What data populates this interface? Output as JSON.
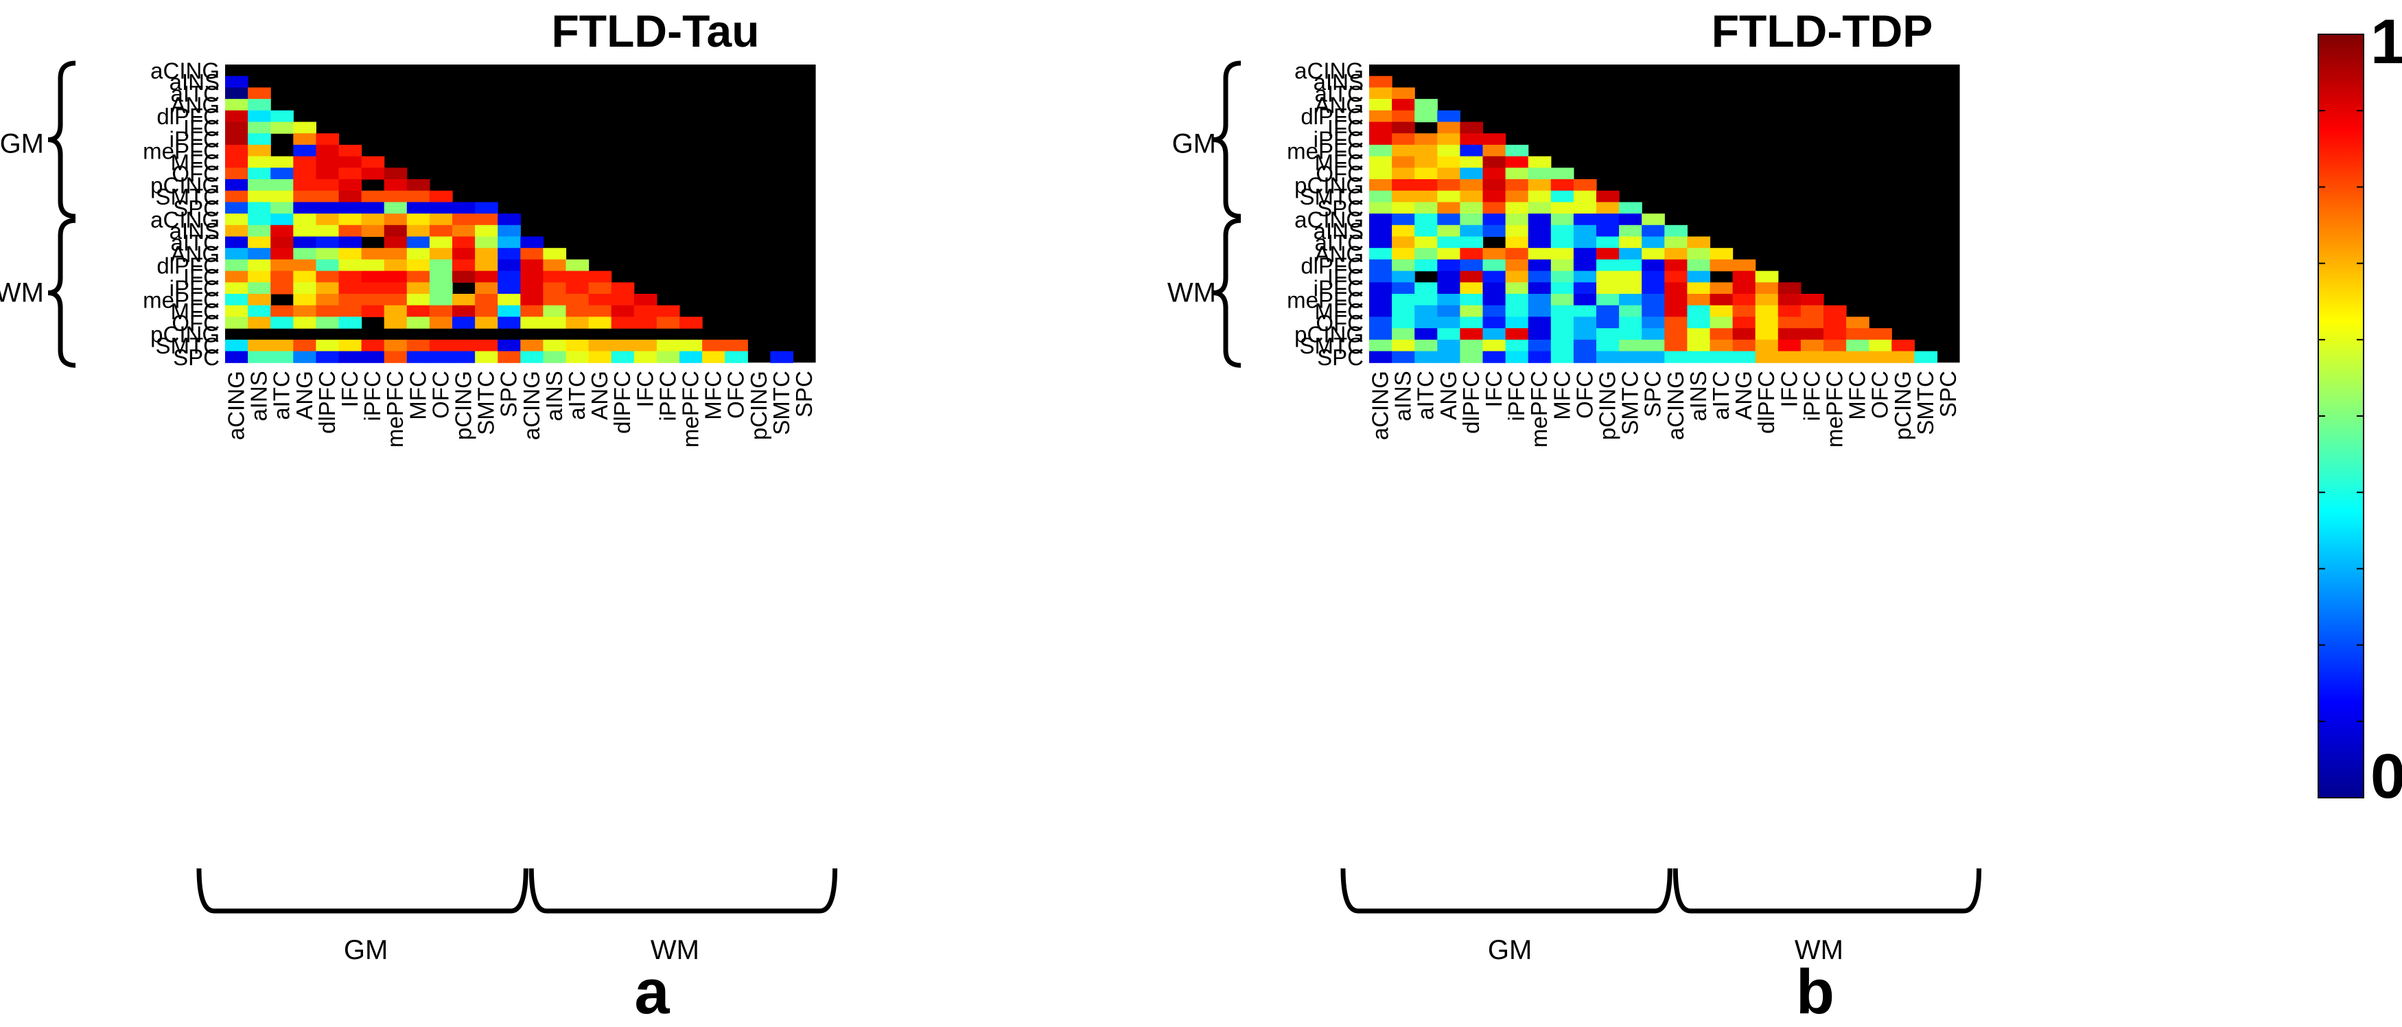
{
  "colorbar": {
    "max_label": "1",
    "min_label": "0",
    "min": 0,
    "max": 1,
    "colormap": "jet"
  },
  "chart_data": [
    {
      "type": "heatmap",
      "title": "FTLD-Tau",
      "panel_label": "a",
      "row_labels": [
        "aCING",
        "aINS",
        "aITC",
        "ANG",
        "dlPFC",
        "IFC",
        "iPFC",
        "mePFC",
        "MFC",
        "OFC",
        "pCING",
        "SMTC",
        "SPC",
        "aCING",
        "aINS",
        "aITC",
        "ANG",
        "dlPFC",
        "IFC",
        "iPFC",
        "mePFC",
        "MFC",
        "OFC",
        "pCING",
        "SMTC",
        "SPC"
      ],
      "col_labels": [
        "aCING",
        "aINS",
        "aITC",
        "ANG",
        "dlPFC",
        "IFC",
        "iPFC",
        "mePFC",
        "MFC",
        "OFC",
        "pCING",
        "SMTC",
        "SPC",
        "aCING",
        "aINS",
        "aITC",
        "ANG",
        "dlPFC",
        "IFC",
        "iPFC",
        "mePFC",
        "MFC",
        "OFC",
        "pCING",
        "SMTC",
        "SPC"
      ],
      "group_labels": [
        "GM",
        "WM"
      ],
      "matrix": [
        [],
        [
          0.1
        ],
        [
          0.0,
          0.8
        ],
        [
          0.55,
          0.45
        ],
        [
          0.92,
          0.35,
          0.4
        ],
        [
          0.95,
          0.5,
          0.55,
          0.6
        ],
        [
          0.95,
          0.4,
          null,
          0.75,
          0.85
        ],
        [
          0.85,
          0.7,
          null,
          0.15,
          0.9,
          0.85
        ],
        [
          0.85,
          0.6,
          0.6,
          0.85,
          0.9,
          0.9,
          0.85
        ],
        [
          0.8,
          0.4,
          0.2,
          0.85,
          0.9,
          0.85,
          0.9,
          0.95
        ],
        [
          0.1,
          0.5,
          0.5,
          0.85,
          0.85,
          0.9,
          null,
          0.9,
          0.95
        ],
        [
          0.8,
          0.6,
          0.6,
          0.8,
          0.8,
          0.92,
          0.8,
          0.8,
          0.8,
          0.85
        ],
        [
          0.2,
          0.4,
          0.5,
          0.1,
          0.1,
          0.1,
          0.1,
          0.5,
          0.1,
          0.1,
          0.1,
          0.15
        ],
        [
          0.6,
          0.4,
          0.35,
          0.6,
          0.7,
          0.65,
          0.7,
          0.75,
          0.65,
          0.7,
          0.8,
          0.8,
          0.1
        ],
        [
          0.7,
          0.5,
          0.9,
          0.6,
          0.6,
          0.8,
          0.75,
          0.95,
          0.7,
          0.8,
          0.75,
          0.6,
          0.25
        ],
        [
          0.1,
          0.65,
          0.92,
          0.1,
          0.15,
          0.1,
          null,
          0.92,
          0.2,
          0.6,
          0.85,
          0.55,
          0.3,
          0.1
        ],
        [
          0.3,
          0.25,
          0.9,
          0.5,
          0.55,
          0.65,
          0.75,
          0.75,
          0.6,
          0.7,
          0.9,
          0.7,
          0.15,
          0.8,
          0.6
        ],
        [
          0.5,
          0.6,
          0.75,
          0.75,
          0.45,
          0.6,
          0.6,
          0.7,
          0.65,
          0.5,
          0.85,
          0.7,
          0.1,
          0.9,
          0.75,
          0.55
        ],
        [
          0.75,
          0.65,
          0.8,
          0.65,
          0.8,
          0.85,
          0.88,
          0.88,
          0.8,
          0.5,
          0.95,
          0.9,
          0.15,
          0.9,
          0.85,
          0.85,
          0.85
        ],
        [
          0.6,
          0.5,
          0.8,
          0.6,
          0.7,
          0.85,
          0.85,
          0.85,
          0.7,
          0.5,
          null,
          0.75,
          0.15,
          0.9,
          0.8,
          0.85,
          0.8,
          0.85
        ],
        [
          0.4,
          0.7,
          null,
          0.65,
          0.75,
          0.8,
          0.8,
          0.8,
          0.6,
          0.5,
          0.7,
          0.8,
          0.6,
          0.9,
          0.8,
          0.8,
          0.85,
          0.85,
          0.9
        ],
        [
          0.6,
          0.4,
          0.8,
          0.75,
          0.8,
          0.8,
          0.85,
          0.7,
          0.85,
          0.8,
          0.92,
          0.8,
          0.35,
          0.8,
          0.55,
          0.8,
          0.8,
          0.9,
          0.85,
          0.85
        ],
        [
          0.55,
          0.7,
          0.4,
          0.6,
          0.5,
          0.4,
          null,
          0.7,
          0.55,
          0.75,
          0.15,
          0.7,
          0.15,
          0.6,
          0.6,
          0.7,
          0.65,
          0.85,
          0.85,
          0.8,
          0.85
        ],
        [],
        [
          0.35,
          0.7,
          0.7,
          0.8,
          0.6,
          0.65,
          0.85,
          0.75,
          0.8,
          0.85,
          0.85,
          0.85,
          0.1,
          0.75,
          0.6,
          0.65,
          0.7,
          0.7,
          0.7,
          0.6,
          0.6,
          0.8,
          0.8,
          null
        ],
        [
          0.1,
          0.45,
          0.45,
          0.25,
          0.15,
          0.1,
          0.1,
          0.8,
          0.15,
          0.15,
          0.15,
          0.6,
          0.8,
          0.4,
          0.5,
          0.6,
          0.65,
          0.4,
          0.6,
          0.55,
          0.35,
          0.65,
          0.4,
          null,
          0.15
        ]
      ]
    },
    {
      "type": "heatmap",
      "title": "FTLD-TDP",
      "panel_label": "b",
      "row_labels": [
        "aCING",
        "aINS",
        "aITC",
        "ANG",
        "dlPFC",
        "IFC",
        "iPFC",
        "mePFC",
        "MFC",
        "OFC",
        "pCING",
        "SMTC",
        "SPC",
        "aCING",
        "aINS",
        "aITC",
        "ANG",
        "dlPFC",
        "IFC",
        "iPFC",
        "mePFC",
        "MFC",
        "OFC",
        "pCING",
        "SMTC",
        "SPC"
      ],
      "col_labels": [
        "aCING",
        "aINS",
        "aITC",
        "ANG",
        "dlPFC",
        "IFC",
        "iPFC",
        "mePFC",
        "MFC",
        "OFC",
        "pCING",
        "SMTC",
        "SPC",
        "aCING",
        "aINS",
        "aITC",
        "ANG",
        "dlPFC",
        "IFC",
        "iPFC",
        "mePFC",
        "MFC",
        "OFC",
        "pCING",
        "SMTC",
        "SPC"
      ],
      "group_labels": [
        "GM",
        "WM"
      ],
      "matrix": [
        [],
        [
          0.8
        ],
        [
          0.7,
          0.75
        ],
        [
          0.6,
          0.9,
          0.5
        ],
        [
          0.75,
          0.8,
          0.5,
          0.2
        ],
        [
          0.9,
          0.95,
          null,
          0.75,
          0.95
        ],
        [
          0.9,
          0.8,
          0.75,
          0.7,
          0.9,
          0.9
        ],
        [
          0.5,
          0.7,
          0.7,
          0.6,
          0.15,
          0.75,
          0.45
        ],
        [
          0.6,
          0.75,
          0.7,
          0.65,
          0.6,
          0.95,
          0.88,
          0.6
        ],
        [
          0.6,
          0.7,
          0.65,
          0.7,
          0.3,
          0.9,
          0.55,
          0.5,
          0.5
        ],
        [
          0.75,
          0.85,
          0.85,
          0.8,
          0.75,
          0.92,
          0.8,
          0.7,
          0.85,
          0.8
        ],
        [
          0.5,
          0.7,
          0.7,
          0.6,
          0.7,
          0.9,
          0.75,
          0.6,
          0.4,
          0.6,
          0.92
        ],
        [
          0.55,
          0.6,
          0.55,
          0.75,
          0.55,
          0.8,
          0.6,
          0.55,
          0.6,
          0.6,
          0.7,
          0.45
        ],
        [
          0.1,
          0.2,
          0.4,
          0.2,
          0.5,
          0.15,
          0.55,
          0.1,
          0.5,
          0.15,
          0.15,
          0.1,
          0.55
        ],
        [
          0.1,
          0.65,
          0.4,
          0.55,
          0.3,
          0.2,
          0.6,
          0.1,
          0.4,
          0.3,
          0.15,
          0.5,
          0.2,
          0.45
        ],
        [
          0.1,
          0.7,
          0.6,
          0.4,
          0.4,
          null,
          0.65,
          0.1,
          0.4,
          0.3,
          0.4,
          0.6,
          0.3,
          0.55,
          0.7
        ],
        [
          0.4,
          0.65,
          0.5,
          0.6,
          0.85,
          0.75,
          0.8,
          0.6,
          0.6,
          0.1,
          0.9,
          0.3,
          0.6,
          0.7,
          0.55,
          0.65
        ],
        [
          0.2,
          0.5,
          0.4,
          0.15,
          0.2,
          0.45,
          0.75,
          0.1,
          0.55,
          0.1,
          0.4,
          0.4,
          0.1,
          0.9,
          0.5,
          0.75,
          0.75
        ],
        [
          0.2,
          0.3,
          null,
          0.1,
          0.92,
          0.15,
          0.7,
          0.2,
          0.45,
          0.3,
          0.6,
          0.6,
          0.15,
          0.85,
          0.3,
          null,
          0.9,
          0.6
        ],
        [
          0.1,
          0.2,
          0.4,
          0.1,
          0.65,
          0.1,
          0.55,
          0.1,
          0.4,
          0.15,
          0.6,
          0.6,
          0.15,
          0.9,
          0.65,
          0.75,
          0.9,
          0.75,
          0.95
        ],
        [
          0.1,
          0.4,
          0.4,
          0.3,
          0.4,
          0.1,
          0.4,
          0.25,
          0.5,
          0.1,
          0.45,
          0.3,
          0.2,
          0.9,
          0.75,
          0.92,
          0.85,
          0.7,
          0.92,
          0.9
        ],
        [
          0.1,
          0.4,
          0.3,
          0.25,
          0.55,
          0.2,
          0.4,
          0.25,
          0.4,
          0.4,
          0.2,
          0.45,
          0.2,
          0.9,
          0.4,
          0.65,
          0.8,
          0.65,
          0.85,
          0.8,
          0.85
        ],
        [
          0.2,
          0.4,
          0.3,
          0.3,
          0.4,
          0.15,
          0.35,
          0.1,
          0.4,
          0.3,
          0.2,
          0.4,
          0.25,
          0.8,
          0.4,
          0.55,
          0.85,
          0.65,
          0.8,
          0.8,
          0.85,
          0.75
        ],
        [
          0.2,
          0.5,
          0.1,
          0.4,
          0.9,
          0.3,
          0.9,
          0.1,
          0.4,
          0.3,
          0.4,
          0.4,
          0.3,
          0.8,
          0.6,
          0.8,
          0.92,
          0.65,
          0.92,
          0.92,
          0.85,
          0.8,
          0.8
        ],
        [
          0.5,
          0.6,
          0.5,
          0.3,
          0.5,
          0.6,
          0.4,
          0.2,
          0.4,
          0.2,
          0.4,
          0.5,
          0.5,
          0.8,
          0.6,
          0.75,
          0.8,
          0.7,
          0.88,
          0.75,
          0.8,
          0.5,
          0.6,
          0.85
        ],
        [
          0.1,
          0.2,
          0.3,
          0.3,
          0.5,
          0.15,
          0.35,
          0.15,
          0.4,
          0.2,
          0.3,
          0.3,
          0.3,
          0.4,
          0.4,
          0.4,
          0.4,
          0.7,
          0.7,
          0.7,
          0.7,
          0.7,
          0.7,
          0.7,
          0.4
        ]
      ]
    }
  ]
}
